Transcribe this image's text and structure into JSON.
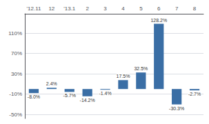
{
  "chart_data": {
    "type": "bar",
    "categories": [
      "'12.11",
      "12",
      "'13.1",
      "2",
      "3",
      "4",
      "5",
      "6",
      "7",
      "8"
    ],
    "values": [
      -8.0,
      2.4,
      -5.7,
      -14.2,
      -1.4,
      17.5,
      32.5,
      128.2,
      -30.3,
      -2.7
    ],
    "value_labels": [
      "-8.0%",
      "2.4%",
      "-5.7%",
      "-14.2%",
      "-1.4%",
      "17.5%",
      "32.5%",
      "128.2%",
      "-30.3%",
      "-2.7%"
    ],
    "data_labels": true,
    "color": "#3a6ea5",
    "ylim": [
      -58,
      148
    ],
    "yticks": [
      {
        "value": -50,
        "label": "-50%"
      },
      {
        "value": -10,
        "label": "-10%"
      },
      {
        "value": 30,
        "label": "30%"
      },
      {
        "value": 70,
        "label": "70%"
      },
      {
        "value": 110,
        "label": "110%"
      }
    ],
    "grid": true
  }
}
